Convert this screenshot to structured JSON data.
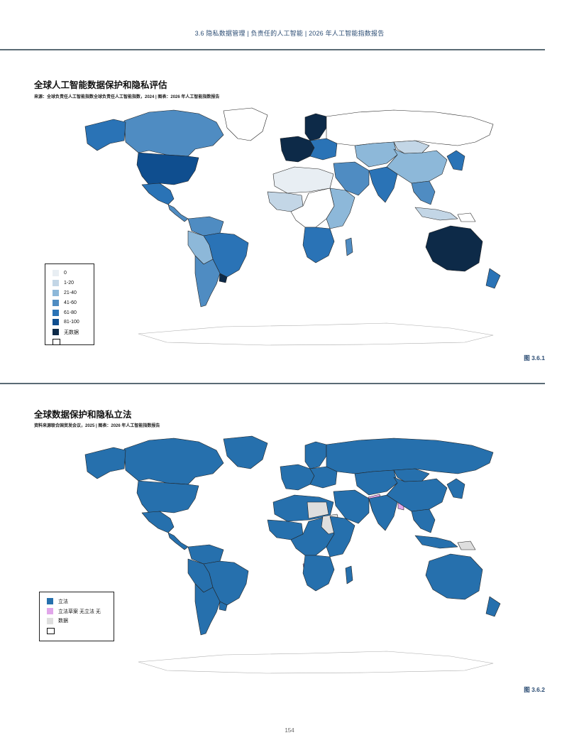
{
  "header": {
    "running_title": "3.6 隐私数据管理 | 负责任的人工智能 | 2026 年人工智能指数报告"
  },
  "colors": {
    "c0": "#e8eef3",
    "c1_20": "#c3d6e6",
    "c21_40": "#8db8d9",
    "c41_60": "#4f8cc2",
    "c61_80": "#2a73b6",
    "c81_100": "#0f4e8f",
    "no_data": "#0d2a48",
    "legislation": "#2670ad",
    "draft": "#e1a6ea",
    "none": "#dedede"
  },
  "figure1": {
    "title": "全球人工智能数据保护和隐私评估",
    "source": "来源：全球负责任人工智能指数全球负责任人工智能指数，2024 | 图表：2026 年人工智能指数报告",
    "legend": [
      {
        "label": "0",
        "color": "#e8eef3"
      },
      {
        "label": "1-20",
        "color": "#c3d6e6"
      },
      {
        "label": "21-40",
        "color": "#8db8d9"
      },
      {
        "label": "41-60",
        "color": "#4f8cc2"
      },
      {
        "label": "61-80",
        "color": "#2a73b6"
      },
      {
        "label": "81-100",
        "color": "#0f4e8f"
      },
      {
        "label": "无数据",
        "color": "#0d2a48"
      },
      {
        "label": "",
        "color": "#ffffff"
      }
    ],
    "regions": [
      {
        "name": "canada",
        "color": "#4f8cc2"
      },
      {
        "name": "alaska",
        "color": "#2a73b6"
      },
      {
        "name": "greenland",
        "color": "#ffffff"
      },
      {
        "name": "usa",
        "color": "#0f4e8f"
      },
      {
        "name": "mexico",
        "color": "#2a73b6"
      },
      {
        "name": "central-america",
        "color": "#4f8cc2"
      },
      {
        "name": "colombia-venezuela",
        "color": "#4f8cc2"
      },
      {
        "name": "peru-bolivia",
        "color": "#8db8d9"
      },
      {
        "name": "brazil",
        "color": "#2a73b6"
      },
      {
        "name": "chile-argentina",
        "color": "#4f8cc2"
      },
      {
        "name": "uruguay",
        "color": "#0d2a48"
      },
      {
        "name": "western-europe",
        "color": "#0d2a48"
      },
      {
        "name": "eastern-europe",
        "color": "#2a73b6"
      },
      {
        "name": "scandinavia",
        "color": "#0d2a48"
      },
      {
        "name": "russia",
        "color": "#ffffff"
      },
      {
        "name": "north-africa",
        "color": "#e8eef3"
      },
      {
        "name": "west-africa",
        "color": "#c3d6e6"
      },
      {
        "name": "central-africa",
        "color": "#ffffff"
      },
      {
        "name": "east-africa",
        "color": "#8db8d9"
      },
      {
        "name": "south-africa",
        "color": "#2a73b6"
      },
      {
        "name": "madagascar",
        "color": "#4f8cc2"
      },
      {
        "name": "middle-east",
        "color": "#4f8cc2"
      },
      {
        "name": "central-asia",
        "color": "#8db8d9"
      },
      {
        "name": "india",
        "color": "#2a73b6"
      },
      {
        "name": "china",
        "color": "#8db8d9"
      },
      {
        "name": "mongolia",
        "color": "#c3d6e6"
      },
      {
        "name": "southeast-asia",
        "color": "#4f8cc2"
      },
      {
        "name": "japan-korea",
        "color": "#2a73b6"
      },
      {
        "name": "indonesia",
        "color": "#c3d6e6"
      },
      {
        "name": "png",
        "color": "#ffffff"
      },
      {
        "name": "australia",
        "color": "#0d2a48"
      },
      {
        "name": "new-zealand",
        "color": "#2a73b6"
      },
      {
        "name": "antarctica",
        "color": "#ffffff"
      }
    ],
    "label": "图 3.6.1"
  },
  "figure2": {
    "title": "全球数据保护和隐私立法",
    "source": "资料来源联合国贸发会议，2025 | 图表：2026 年人工智能指数报告",
    "legend": [
      {
        "label": "立法",
        "color": "#2670ad"
      },
      {
        "label": "立法草案 无立法 无",
        "color": "#e1a6ea"
      },
      {
        "label": "数据",
        "color": "#dedede"
      },
      {
        "label": "",
        "color": "#ffffff"
      }
    ],
    "regions": [
      {
        "name": "canada",
        "color": "#2670ad"
      },
      {
        "name": "alaska",
        "color": "#2670ad"
      },
      {
        "name": "greenland",
        "color": "#2670ad"
      },
      {
        "name": "usa",
        "color": "#2670ad"
      },
      {
        "name": "mexico",
        "color": "#2670ad"
      },
      {
        "name": "central-america",
        "color": "#2670ad"
      },
      {
        "name": "colombia-venezuela",
        "color": "#2670ad"
      },
      {
        "name": "peru-bolivia",
        "color": "#2670ad"
      },
      {
        "name": "brazil",
        "color": "#2670ad"
      },
      {
        "name": "chile-argentina",
        "color": "#2670ad"
      },
      {
        "name": "uruguay",
        "color": "#2670ad"
      },
      {
        "name": "western-europe",
        "color": "#2670ad"
      },
      {
        "name": "eastern-europe",
        "color": "#2670ad"
      },
      {
        "name": "scandinavia",
        "color": "#2670ad"
      },
      {
        "name": "russia",
        "color": "#2670ad"
      },
      {
        "name": "north-africa",
        "color": "#2670ad"
      },
      {
        "name": "libya",
        "color": "#dedede"
      },
      {
        "name": "west-africa",
        "color": "#2670ad"
      },
      {
        "name": "central-africa",
        "color": "#2670ad"
      },
      {
        "name": "sudan",
        "color": "#dedede"
      },
      {
        "name": "east-africa",
        "color": "#2670ad"
      },
      {
        "name": "namibia",
        "color": "#e1a6ea"
      },
      {
        "name": "south-africa",
        "color": "#2670ad"
      },
      {
        "name": "madagascar",
        "color": "#2670ad"
      },
      {
        "name": "middle-east",
        "color": "#2670ad"
      },
      {
        "name": "pakistan",
        "color": "#e1a6ea"
      },
      {
        "name": "central-asia",
        "color": "#2670ad"
      },
      {
        "name": "india",
        "color": "#2670ad"
      },
      {
        "name": "bangladesh",
        "color": "#e1a6ea"
      },
      {
        "name": "china",
        "color": "#2670ad"
      },
      {
        "name": "mongolia",
        "color": "#2670ad"
      },
      {
        "name": "southeast-asia",
        "color": "#2670ad"
      },
      {
        "name": "japan-korea",
        "color": "#2670ad"
      },
      {
        "name": "indonesia",
        "color": "#2670ad"
      },
      {
        "name": "png",
        "color": "#dedede"
      },
      {
        "name": "australia",
        "color": "#2670ad"
      },
      {
        "name": "new-zealand",
        "color": "#2670ad"
      },
      {
        "name": "antarctica",
        "color": "#ffffff"
      }
    ],
    "label": "图 3.6.2"
  },
  "page_number": "154"
}
